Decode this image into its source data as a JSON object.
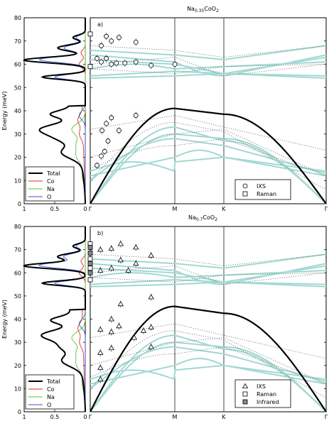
{
  "chart_data": [
    {
      "type": "line",
      "panel": "a",
      "title_html": "Na<sub>0.35</sub>CoO<sub>2</sub>",
      "title_main": "Na",
      "title_sub1": "0.35",
      "title_mid": "CoO",
      "title_sub2": "2",
      "panel_label": "a)",
      "ylabel": "Energy (meV)",
      "ylim": [
        0,
        80
      ],
      "yticks": [
        "0",
        "10",
        "20",
        "30",
        "40",
        "50",
        "60",
        "70",
        "80"
      ],
      "xticks": [
        "Γ",
        "M",
        "K",
        "Γ"
      ],
      "dos_xticks": [
        "1",
        "0.5",
        "0"
      ],
      "legend_dos": [
        "Total",
        "Co",
        "Na",
        "O"
      ],
      "legend_points": [
        "IXS",
        "Raman"
      ],
      "ixs_points": [
        {
          "x": 0.08,
          "y": 16.5
        },
        {
          "x": 0.13,
          "y": 20.5
        },
        {
          "x": 0.17,
          "y": 22.5
        },
        {
          "x": 0.21,
          "y": 27
        },
        {
          "x": 0.14,
          "y": 31.5
        },
        {
          "x": 0.19,
          "y": 34.5
        },
        {
          "x": 0.25,
          "y": 37
        },
        {
          "x": 0.34,
          "y": 31.5
        },
        {
          "x": 0.54,
          "y": 38
        },
        {
          "x": 0.08,
          "y": 62.5
        },
        {
          "x": 0.13,
          "y": 61
        },
        {
          "x": 0.19,
          "y": 62.5
        },
        {
          "x": 0.25,
          "y": 60
        },
        {
          "x": 0.31,
          "y": 60.5
        },
        {
          "x": 0.41,
          "y": 60.5
        },
        {
          "x": 0.54,
          "y": 61
        },
        {
          "x": 0.72,
          "y": 59.5
        },
        {
          "x": 0.13,
          "y": 68
        },
        {
          "x": 0.19,
          "y": 72
        },
        {
          "x": 0.25,
          "y": 70
        },
        {
          "x": 0.34,
          "y": 71.5
        },
        {
          "x": 0.54,
          "y": 69.5
        },
        {
          "x": 1.0,
          "y": 60
        }
      ],
      "raman_points": [
        {
          "x": 0.0,
          "y": 73
        },
        {
          "x": 0.0,
          "y": 59
        }
      ],
      "dos_max_energy": 42
    },
    {
      "type": "line",
      "panel": "b",
      "title_main": "Na",
      "title_sub1": "0.7",
      "title_mid": "CoO",
      "title_sub2": "2",
      "panel_label": "b)",
      "ylabel": "Energy (meV)",
      "ylim": [
        0,
        80
      ],
      "yticks": [
        "0",
        "10",
        "20",
        "30",
        "40",
        "50",
        "60",
        "70",
        "80"
      ],
      "xticks": [
        "Γ",
        "M",
        "K",
        "Γ"
      ],
      "dos_xticks": [
        "1",
        "0.5",
        "0"
      ],
      "legend_dos": [
        "Total",
        "Co",
        "Na",
        "O"
      ],
      "legend_points": [
        "IXS",
        "Raman",
        "Infrared"
      ],
      "ixs_points": [
        {
          "x": 0.12,
          "y": 14
        },
        {
          "x": 0.12,
          "y": 19
        },
        {
          "x": 0.12,
          "y": 25.5
        },
        {
          "x": 0.12,
          "y": 35.5
        },
        {
          "x": 0.25,
          "y": 27.5
        },
        {
          "x": 0.25,
          "y": 34.5
        },
        {
          "x": 0.25,
          "y": 40
        },
        {
          "x": 0.34,
          "y": 37
        },
        {
          "x": 0.36,
          "y": 46.5
        },
        {
          "x": 0.45,
          "y": 61
        },
        {
          "x": 0.52,
          "y": 32
        },
        {
          "x": 0.63,
          "y": 35
        },
        {
          "x": 0.72,
          "y": 28
        },
        {
          "x": 0.72,
          "y": 36.5
        },
        {
          "x": 0.72,
          "y": 49.5
        },
        {
          "x": 0.72,
          "y": 67.5
        },
        {
          "x": 0.12,
          "y": 70
        },
        {
          "x": 0.12,
          "y": 61
        },
        {
          "x": 0.25,
          "y": 70.5
        },
        {
          "x": 0.25,
          "y": 62
        },
        {
          "x": 0.36,
          "y": 72.5
        },
        {
          "x": 0.36,
          "y": 65.5
        },
        {
          "x": 0.54,
          "y": 71
        },
        {
          "x": 0.54,
          "y": 64
        }
      ],
      "raman_points": [
        {
          "x": 0.0,
          "y": 72.5
        },
        {
          "x": 0.0,
          "y": 66
        },
        {
          "x": 0.0,
          "y": 62
        },
        {
          "x": 0.0,
          "y": 57
        }
      ],
      "infrared_points": [
        {
          "x": 0.0,
          "y": 71
        },
        {
          "x": 0.0,
          "y": 68.5
        },
        {
          "x": 0.0,
          "y": 64
        },
        {
          "x": 0.0,
          "y": 60
        }
      ],
      "dos_max_energy": 44
    }
  ],
  "colors": {
    "total": "#000000",
    "co": "#e0282a",
    "na": "#5ec13a",
    "o": "#3a56d8",
    "dispersion": "#b6e6de",
    "dispersion_dark": "#6aa8b2",
    "acoustic": "#000000",
    "dotted": "#555555",
    "axis": "#000000",
    "infrared_fill": "#888888"
  }
}
